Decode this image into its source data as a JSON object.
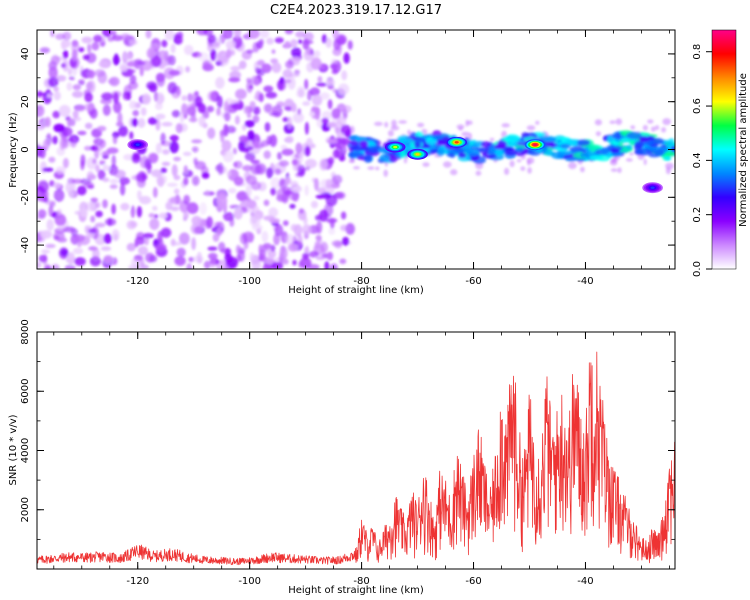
{
  "figure": {
    "title": "C2E4.2023.319.17.12.G17"
  },
  "chart_data": [
    {
      "type": "heatmap",
      "xlabel": "Height of straight line (km)",
      "ylabel": "Frequency (Hz)",
      "xlim": [
        -138,
        -24
      ],
      "ylim": [
        -50,
        50
      ],
      "x_ticks": [
        -120,
        -100,
        -80,
        -60,
        -40
      ],
      "y_ticks": [
        -40,
        -20,
        0,
        20,
        40
      ],
      "grid": false,
      "colorbar": {
        "label": "Normalized spectral amplitude",
        "range": [
          0,
          0.88
        ],
        "ticks": [
          0.0,
          0.2,
          0.4,
          0.6,
          0.8
        ],
        "colors": [
          "#ffffff",
          "#cc88ff",
          "#8a00ff",
          "#3300ff",
          "#0088ff",
          "#00ffff",
          "#00ff44",
          "#ffff00",
          "#ff8800",
          "#ff0000",
          "#ff0088"
        ]
      },
      "features": [
        {
          "name": "diffuse noise",
          "x_range": [
            -138,
            -82
          ],
          "y_range": [
            -50,
            50
          ],
          "amplitude": 0.1
        },
        {
          "name": "signal band",
          "x_range": [
            -82,
            -24
          ],
          "center_frequency": 1,
          "width": 8,
          "amplitude_peak": 0.85
        },
        {
          "name": "peak",
          "x": -49,
          "y": 2,
          "amplitude": 0.85
        },
        {
          "name": "peak",
          "x": -63,
          "y": 3,
          "amplitude": 0.75
        },
        {
          "name": "peak",
          "x": -70,
          "y": -2,
          "amplitude": 0.65
        },
        {
          "name": "peak",
          "x": -74,
          "y": 1,
          "amplitude": 0.6
        },
        {
          "name": "spot",
          "x": -120,
          "y": 2,
          "amplitude": 0.3
        },
        {
          "name": "spot",
          "x": -28,
          "y": -16,
          "amplitude": 0.3
        }
      ]
    },
    {
      "type": "line",
      "xlabel": "Height of straight line (km)",
      "ylabel": "SNR (10 * v/v)",
      "xlim": [
        -138,
        -24
      ],
      "ylim": [
        0,
        8000
      ],
      "x_ticks": [
        -120,
        -100,
        -80,
        -60,
        -40
      ],
      "y_ticks": [
        2000,
        4000,
        6000,
        8000
      ],
      "grid": false,
      "series": [
        {
          "color": "#ee3333",
          "x": [
            -138,
            -135,
            -132,
            -129,
            -126,
            -123,
            -120,
            -117,
            -114,
            -111,
            -108,
            -105,
            -102,
            -99,
            -96,
            -93,
            -90,
            -87,
            -84,
            -81,
            -80,
            -79,
            -78,
            -77,
            -76,
            -75,
            -74,
            -73,
            -72,
            -71,
            -70,
            -69,
            -68,
            -67,
            -66,
            -65,
            -64,
            -63,
            -62,
            -61,
            -60,
            -59,
            -58,
            -57,
            -56,
            -55,
            -54,
            -53,
            -52,
            -51,
            -50,
            -49,
            -48,
            -47,
            -46,
            -45,
            -44,
            -43,
            -42,
            -41,
            -40,
            -39,
            -38,
            -37,
            -36,
            -35,
            -34,
            -33,
            -32,
            -31,
            -30,
            -29,
            -28,
            -27,
            -26,
            -25,
            -24
          ],
          "y": [
            300,
            350,
            400,
            380,
            420,
            350,
            600,
            420,
            500,
            380,
            300,
            280,
            250,
            300,
            400,
            350,
            320,
            280,
            300,
            500,
            1700,
            1100,
            1400,
            800,
            1300,
            1600,
            2400,
            1900,
            1500,
            2500,
            2000,
            3300,
            2600,
            1500,
            3100,
            2800,
            2200,
            4000,
            3000,
            2400,
            3600,
            4500,
            3300,
            2500,
            3800,
            6000,
            4700,
            7100,
            4500,
            3500,
            5600,
            4200,
            3700,
            6300,
            4600,
            5000,
            5900,
            4700,
            6700,
            5300,
            4400,
            8000,
            7000,
            5500,
            3900,
            3200,
            2800,
            2300,
            1800,
            1400,
            1000,
            900,
            1300,
            1100,
            1900,
            3700,
            4200
          ]
        }
      ]
    }
  ]
}
